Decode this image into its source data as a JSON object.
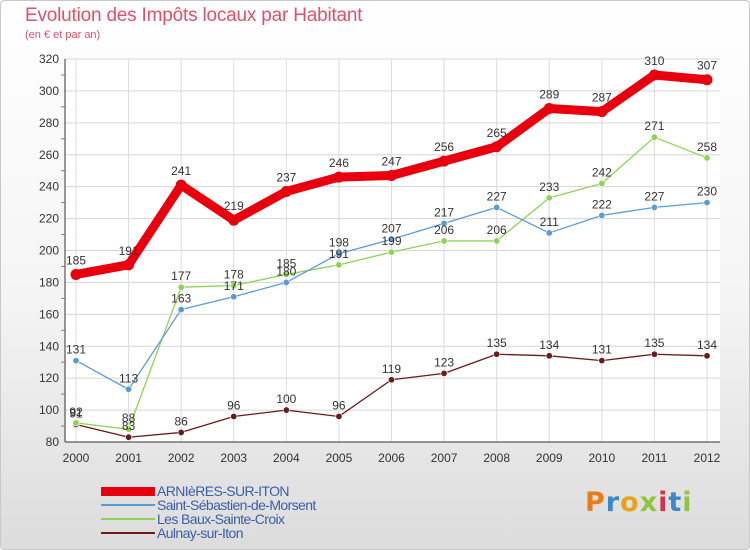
{
  "title": "Evolution des Impôts locaux par Habitant",
  "subtitle": "(en € et par an)",
  "logo": "Proxiti",
  "chart_data": {
    "type": "line",
    "x": [
      "2000",
      "2001",
      "2002",
      "2003",
      "2004",
      "2005",
      "2006",
      "2007",
      "2008",
      "2009",
      "2010",
      "2011",
      "2012"
    ],
    "ylim": [
      80,
      320
    ],
    "yticks": [
      80,
      100,
      120,
      140,
      160,
      180,
      200,
      220,
      240,
      260,
      280,
      300,
      320
    ],
    "grid": true,
    "legend_position": "bottom-left",
    "series": [
      {
        "name": "ARNIèRES-SUR-ITON",
        "color": "#e8000e",
        "values": [
          185,
          191,
          241,
          219,
          237,
          246,
          247,
          256,
          265,
          289,
          287,
          310,
          307
        ]
      },
      {
        "name": "Saint-Sébastien-de-Morsent",
        "color": "#5b9bd5",
        "values": [
          131,
          113,
          163,
          171,
          180,
          198,
          207,
          217,
          227,
          211,
          222,
          227,
          230
        ]
      },
      {
        "name": "Les Baux-Sainte-Croix",
        "color": "#8ed454",
        "values": [
          92,
          88,
          177,
          178,
          185,
          191,
          199,
          206,
          206,
          233,
          242,
          271,
          258
        ]
      },
      {
        "name": "Aulnay-sur-Iton",
        "color": "#6b1a1a",
        "values": [
          91,
          83,
          86,
          96,
          100,
          96,
          119,
          123,
          135,
          134,
          131,
          135,
          134
        ]
      }
    ]
  }
}
